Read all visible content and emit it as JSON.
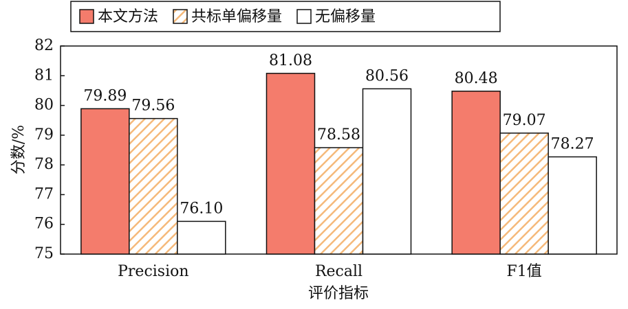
{
  "chart_data": {
    "type": "bar",
    "x_label": "评价指标",
    "y_label": "分数/%",
    "categories": [
      "Precision",
      "Recall",
      "F1值"
    ],
    "series": [
      {
        "name": "本文方法",
        "color": "#f47c6c",
        "values": [
          79.89,
          81.08,
          80.48
        ],
        "value_labels": [
          "79.89",
          "81.08",
          "80.48"
        ]
      },
      {
        "name": "共标单偏移量",
        "color": "#f5b97a",
        "hatch": true,
        "values": [
          79.56,
          78.58,
          79.07
        ],
        "value_labels": [
          "79.56",
          "78.58",
          "79.07"
        ]
      },
      {
        "name": "无偏移量",
        "color": "#ffffff",
        "values": [
          76.1,
          80.56,
          78.27
        ],
        "value_labels": [
          "76.10",
          "80.56",
          "78.27"
        ]
      }
    ],
    "ylim": [
      75,
      82
    ],
    "yticks": [
      75,
      76,
      77,
      78,
      79,
      80,
      81,
      82
    ]
  }
}
